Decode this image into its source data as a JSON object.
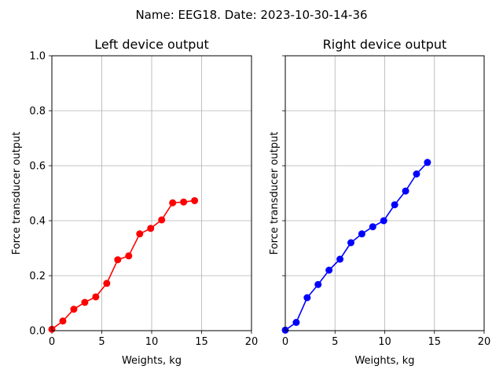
{
  "suptitle": "Name: EEG18. Date: 2023-10-30-14-36",
  "chart_data": [
    {
      "type": "line",
      "title": "Left device output",
      "xlabel": "Weights, kg",
      "ylabel": "Force transducer output",
      "xlim": [
        0,
        20
      ],
      "ylim": [
        0,
        1.0
      ],
      "xticks": [
        "0",
        "5",
        "10",
        "15",
        "20"
      ],
      "yticks": [
        "0.0",
        "0.2",
        "0.4",
        "0.6",
        "0.8",
        "1.0"
      ],
      "show_y_tick_labels": true,
      "grid": true,
      "color": "#ff0000",
      "marker": "circle",
      "series": [
        {
          "x": [
            0,
            1.1,
            2.2,
            3.3,
            4.4,
            5.5,
            6.6,
            7.7,
            8.8,
            9.9,
            11.0,
            12.1,
            13.2,
            14.3
          ],
          "y": [
            0.005,
            0.035,
            0.078,
            0.103,
            0.123,
            0.172,
            0.258,
            0.272,
            0.352,
            0.372,
            0.403,
            0.465,
            0.468,
            0.473
          ]
        }
      ]
    },
    {
      "type": "line",
      "title": "Right device output",
      "xlabel": "Weights, kg",
      "ylabel": "Force transducer output",
      "xlim": [
        0,
        20
      ],
      "ylim": [
        0,
        1.0
      ],
      "xticks": [
        "0",
        "5",
        "10",
        "15",
        "20"
      ],
      "yticks": [
        "0.0",
        "0.2",
        "0.4",
        "0.6",
        "0.8",
        "1.0"
      ],
      "show_y_tick_labels": false,
      "grid": true,
      "color": "#0000ff",
      "marker": "circle",
      "series": [
        {
          "x": [
            0,
            1.1,
            2.2,
            3.3,
            4.4,
            5.5,
            6.6,
            7.7,
            8.8,
            9.9,
            11.0,
            12.1,
            13.2,
            14.3
          ],
          "y": [
            0.002,
            0.03,
            0.12,
            0.168,
            0.22,
            0.26,
            0.32,
            0.352,
            0.378,
            0.4,
            0.458,
            0.508,
            0.57,
            0.612
          ]
        }
      ]
    }
  ]
}
